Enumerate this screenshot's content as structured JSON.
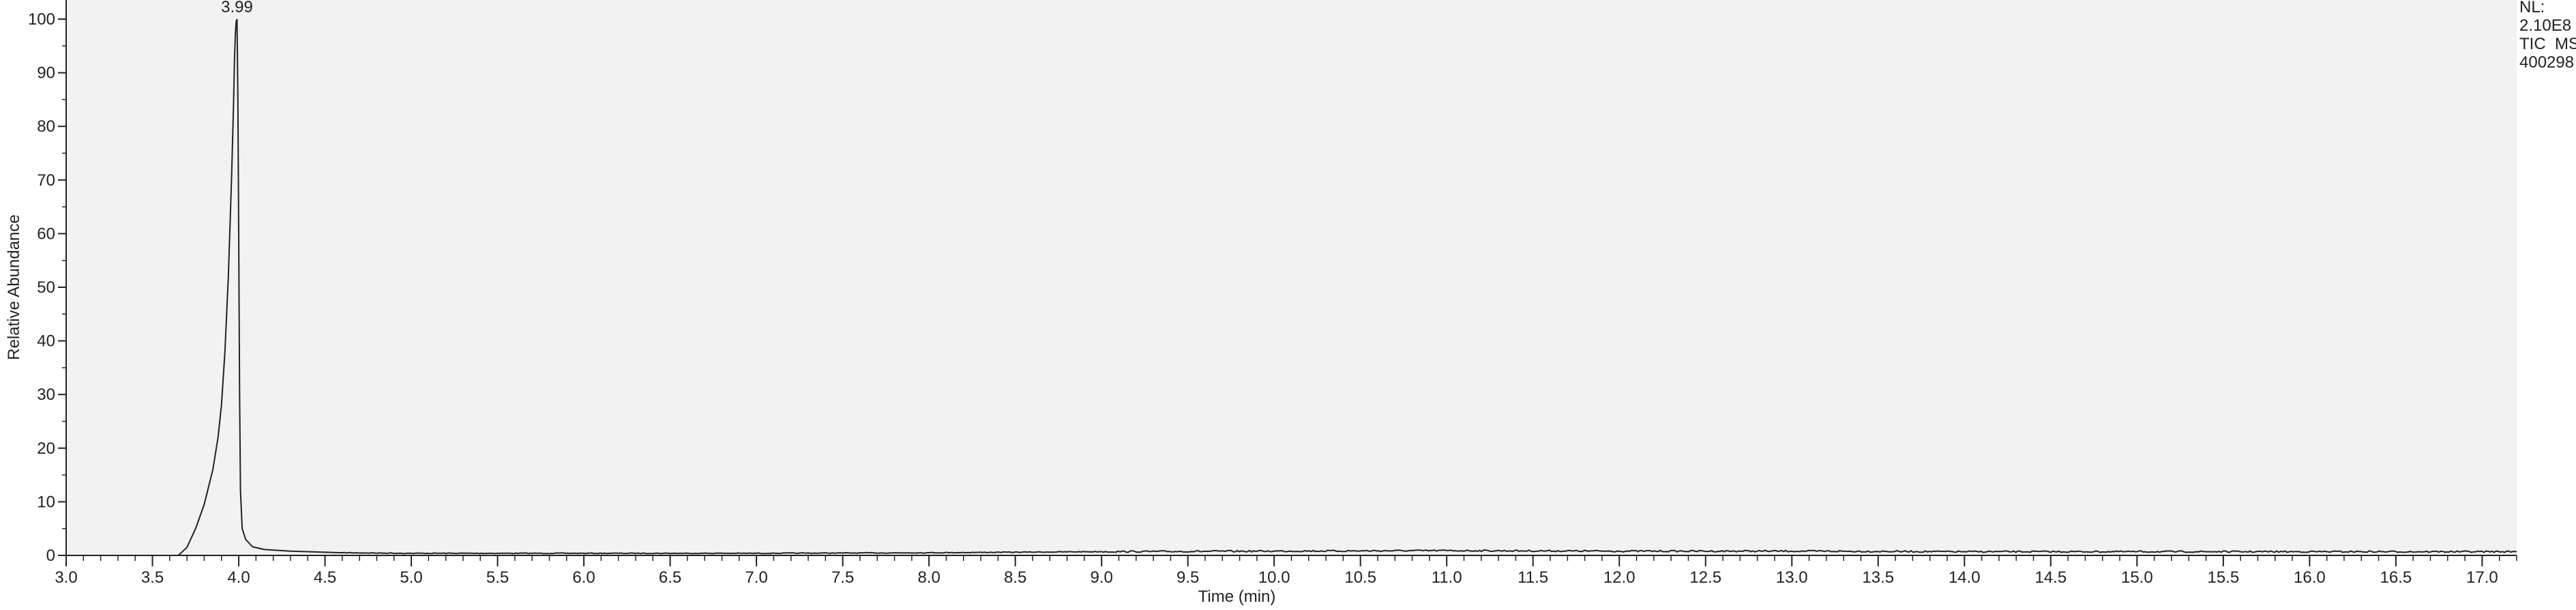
{
  "chart_data": {
    "type": "line",
    "xlabel": "Time (min)",
    "ylabel": "Relative Abundance",
    "xlim": [
      3.0,
      17.2
    ],
    "ylim": [
      0,
      100
    ],
    "x_ticks": [
      "3.0",
      "3.5",
      "4.0",
      "4.5",
      "5.0",
      "5.5",
      "6.0",
      "6.5",
      "7.0",
      "7.5",
      "8.0",
      "8.5",
      "9.0",
      "9.5",
      "10.0",
      "10.5",
      "11.0",
      "11.5",
      "12.0",
      "12.5",
      "13.0",
      "13.5",
      "14.0",
      "14.5",
      "15.0",
      "15.5",
      "16.0",
      "16.5",
      "17.0"
    ],
    "y_ticks": [
      "0",
      "10",
      "20",
      "30",
      "40",
      "50",
      "60",
      "70",
      "80",
      "90",
      "100"
    ],
    "annotations": [
      {
        "x": 3.99,
        "y": 100,
        "text": "3.99"
      }
    ],
    "info": [
      "NL:",
      "2.10E8",
      "TIC  MS",
      "400298"
    ],
    "background_color": "#f2f2f2",
    "line_color": "#222222",
    "series": [
      {
        "x": [
          3.0,
          3.5,
          3.65,
          3.7,
          3.75,
          3.8,
          3.85,
          3.88,
          3.9,
          3.92,
          3.94,
          3.95,
          3.96,
          3.97,
          3.975,
          3.98,
          3.985,
          3.99,
          3.995,
          4.0,
          4.005,
          4.01,
          4.02,
          4.04,
          4.08,
          4.15,
          4.3,
          4.6,
          5.0,
          6.0,
          7.0,
          8.0,
          9.0,
          10.0,
          11.0,
          12.0,
          13.0,
          14.0,
          15.0,
          16.0,
          17.2
        ],
        "y": [
          0,
          0,
          0,
          1.5,
          5,
          9.5,
          16,
          22,
          28,
          38,
          52,
          62,
          72,
          84,
          92,
          97,
          99.5,
          100,
          85,
          60,
          30,
          12,
          5,
          3,
          1.6,
          1.1,
          0.8,
          0.5,
          0.4,
          0.4,
          0.4,
          0.5,
          0.7,
          0.8,
          0.9,
          0.8,
          0.8,
          0.7,
          0.7,
          0.7,
          0.7
        ]
      }
    ]
  }
}
